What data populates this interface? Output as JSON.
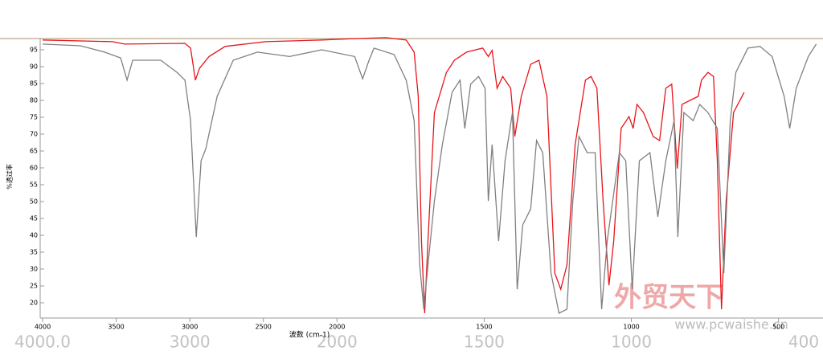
{
  "chart_data": {
    "type": "line",
    "y_label": "%透过率",
    "x_label": "波数 (cm-1)",
    "xlim": [
      4000,
      360
    ],
    "ylim": [
      16,
      99
    ],
    "x_expand_below": 2000,
    "x_expand_factor": 2,
    "xticks": [
      4000,
      3500,
      3000,
      2500,
      2000,
      1500,
      1000,
      500
    ],
    "x_large_labels": [
      {
        "value": 4000,
        "label": "4000.0"
      },
      3000,
      2000,
      1500,
      1000,
      400
    ],
    "yticks": [
      20,
      25,
      30,
      35,
      40,
      45,
      50,
      55,
      60,
      65,
      70,
      75,
      80,
      85,
      90,
      95
    ],
    "series": [
      {
        "color": "#e8141a",
        "x": [
          4000,
          3525,
          3443,
          3033,
          2995,
          2962,
          2934,
          2869,
          2760,
          2486,
          2104,
          1943,
          1833,
          1765,
          1738,
          1724,
          1713,
          1702,
          1691,
          1669,
          1628,
          1601,
          1560,
          1505,
          1486,
          1473,
          1456,
          1437,
          1410,
          1396,
          1374,
          1342,
          1314,
          1287,
          1260,
          1240,
          1219,
          1191,
          1156,
          1137,
          1117,
          1096,
          1076,
          1060,
          1035,
          1008,
          994,
          981,
          959,
          926,
          904,
          883,
          863,
          844,
          828,
          801,
          773,
          762,
          740,
          721,
          708,
          694,
          678,
          653,
          617
        ],
        "values": [
          97.9,
          97.4,
          96.7,
          96.9,
          95.5,
          86,
          89.5,
          93,
          96,
          97.4,
          97.9,
          98.3,
          98.6,
          97.9,
          94.3,
          81.2,
          38.3,
          16.9,
          38.3,
          76.4,
          88.3,
          91.9,
          94.3,
          95.5,
          93,
          94.8,
          83.6,
          87.1,
          83.6,
          69.3,
          81.2,
          90.7,
          91.9,
          81.2,
          28.8,
          24,
          31.2,
          66.9,
          86,
          87.1,
          83.6,
          50.2,
          25.2,
          38.3,
          71.7,
          75.2,
          71.7,
          78.8,
          76.4,
          69.3,
          68.1,
          83.6,
          84.8,
          59.8,
          78.8,
          80,
          81.2,
          86,
          88.3,
          87.1,
          62.1,
          18.1,
          50.2,
          76.4,
          82.4
        ]
      },
      {
        "color": "#808080",
        "x": [
          4000,
          3743,
          3579,
          3470,
          3426,
          3388,
          3197,
          3087,
          3033,
          2995,
          2956,
          2923,
          2891,
          2814,
          2705,
          2541,
          2322,
          2104,
          1940,
          1913,
          1891,
          1874,
          1806,
          1765,
          1738,
          1719,
          1705,
          1691,
          1669,
          1642,
          1609,
          1582,
          1566,
          1546,
          1519,
          1497,
          1486,
          1473,
          1451,
          1429,
          1404,
          1388,
          1369,
          1342,
          1322,
          1301,
          1273,
          1246,
          1219,
          1199,
          1178,
          1150,
          1123,
          1101,
          1082,
          1041,
          1019,
          997,
          973,
          937,
          910,
          883,
          855,
          842,
          822,
          790,
          768,
          740,
          708,
          686,
          664,
          645,
          604,
          563,
          522,
          481,
          462,
          440,
          399,
          372
        ],
        "values": [
          96.7,
          96.2,
          94.3,
          92.6,
          86,
          91.9,
          91.9,
          88.3,
          86,
          74,
          39.5,
          62.1,
          65.7,
          81.2,
          91.9,
          94.3,
          93,
          95,
          93,
          86.4,
          91.9,
          95.5,
          93.6,
          86,
          74,
          31.2,
          18.1,
          31.2,
          50.2,
          66.9,
          82.4,
          86,
          71.7,
          84.8,
          87.1,
          83.6,
          50.2,
          66.9,
          38.3,
          62.1,
          76.4,
          24,
          43.1,
          47.8,
          68.1,
          64.5,
          28.8,
          16.9,
          18.1,
          50.2,
          69.3,
          64.5,
          64.5,
          18.1,
          38.3,
          64.5,
          62.1,
          24,
          62.1,
          64.5,
          45.5,
          62.1,
          74,
          39.5,
          76.4,
          74,
          78.8,
          76.4,
          71.7,
          28.8,
          74,
          88.3,
          95.5,
          96,
          93,
          81.2,
          71.7,
          83.6,
          93,
          96.7
        ]
      }
    ],
    "watermark": [
      "外贸天下",
      "www.pcwaishe.cn"
    ]
  }
}
